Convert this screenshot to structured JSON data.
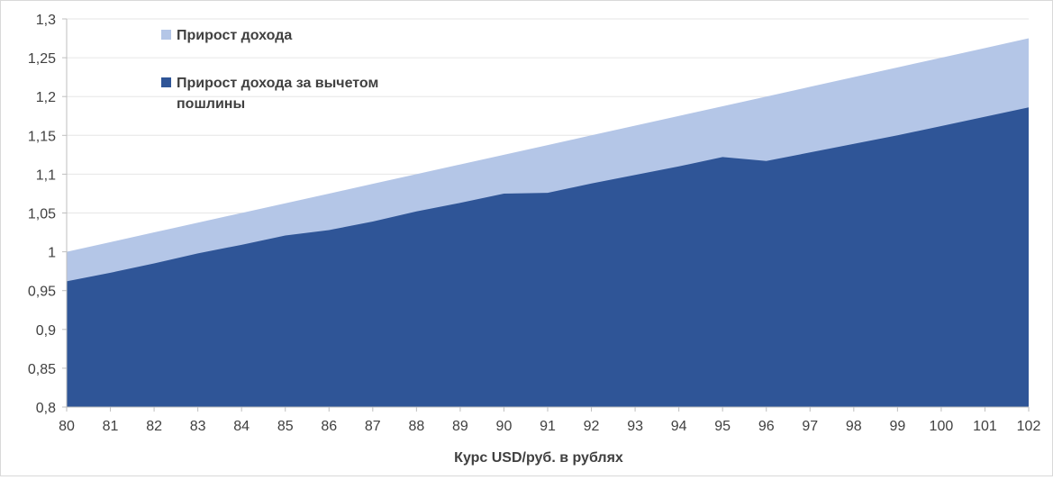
{
  "chart_data": {
    "type": "area",
    "xlabel": "Курс USD/руб. в рублях",
    "ylabel": "",
    "x": [
      80,
      81,
      82,
      83,
      84,
      85,
      86,
      87,
      88,
      89,
      90,
      91,
      92,
      93,
      94,
      95,
      96,
      97,
      98,
      99,
      100,
      101,
      102
    ],
    "y_ticks": [
      "0,8",
      "0,85",
      "0,9",
      "0,95",
      "1",
      "1,05",
      "1,1",
      "1,15",
      "1,2",
      "1,25",
      "1,3"
    ],
    "x_ticks": [
      "80",
      "81",
      "82",
      "83",
      "84",
      "85",
      "86",
      "87",
      "88",
      "89",
      "90",
      "91",
      "92",
      "93",
      "94",
      "95",
      "96",
      "97",
      "98",
      "99",
      "100",
      "101",
      "102"
    ],
    "ylim": [
      0.8,
      1.3
    ],
    "grid": true,
    "legend_position": "top-left",
    "series": [
      {
        "name": "Прирост дохода",
        "color": "#b4c6e7",
        "values": [
          1.0,
          1.0125,
          1.025,
          1.0375,
          1.05,
          1.0625,
          1.075,
          1.0875,
          1.1,
          1.1125,
          1.125,
          1.1375,
          1.15,
          1.1625,
          1.175,
          1.1875,
          1.2,
          1.2125,
          1.225,
          1.2375,
          1.25,
          1.2625,
          1.275
        ]
      },
      {
        "name": "Прирост дохода за вычетом пошлины",
        "color": "#2f5597",
        "values": [
          0.962,
          0.973,
          0.985,
          0.998,
          1.009,
          1.021,
          1.028,
          1.039,
          1.052,
          1.063,
          1.075,
          1.076,
          1.088,
          1.099,
          1.11,
          1.122,
          1.117,
          1.128,
          1.139,
          1.15,
          1.162,
          1.174,
          1.186
        ]
      }
    ]
  }
}
